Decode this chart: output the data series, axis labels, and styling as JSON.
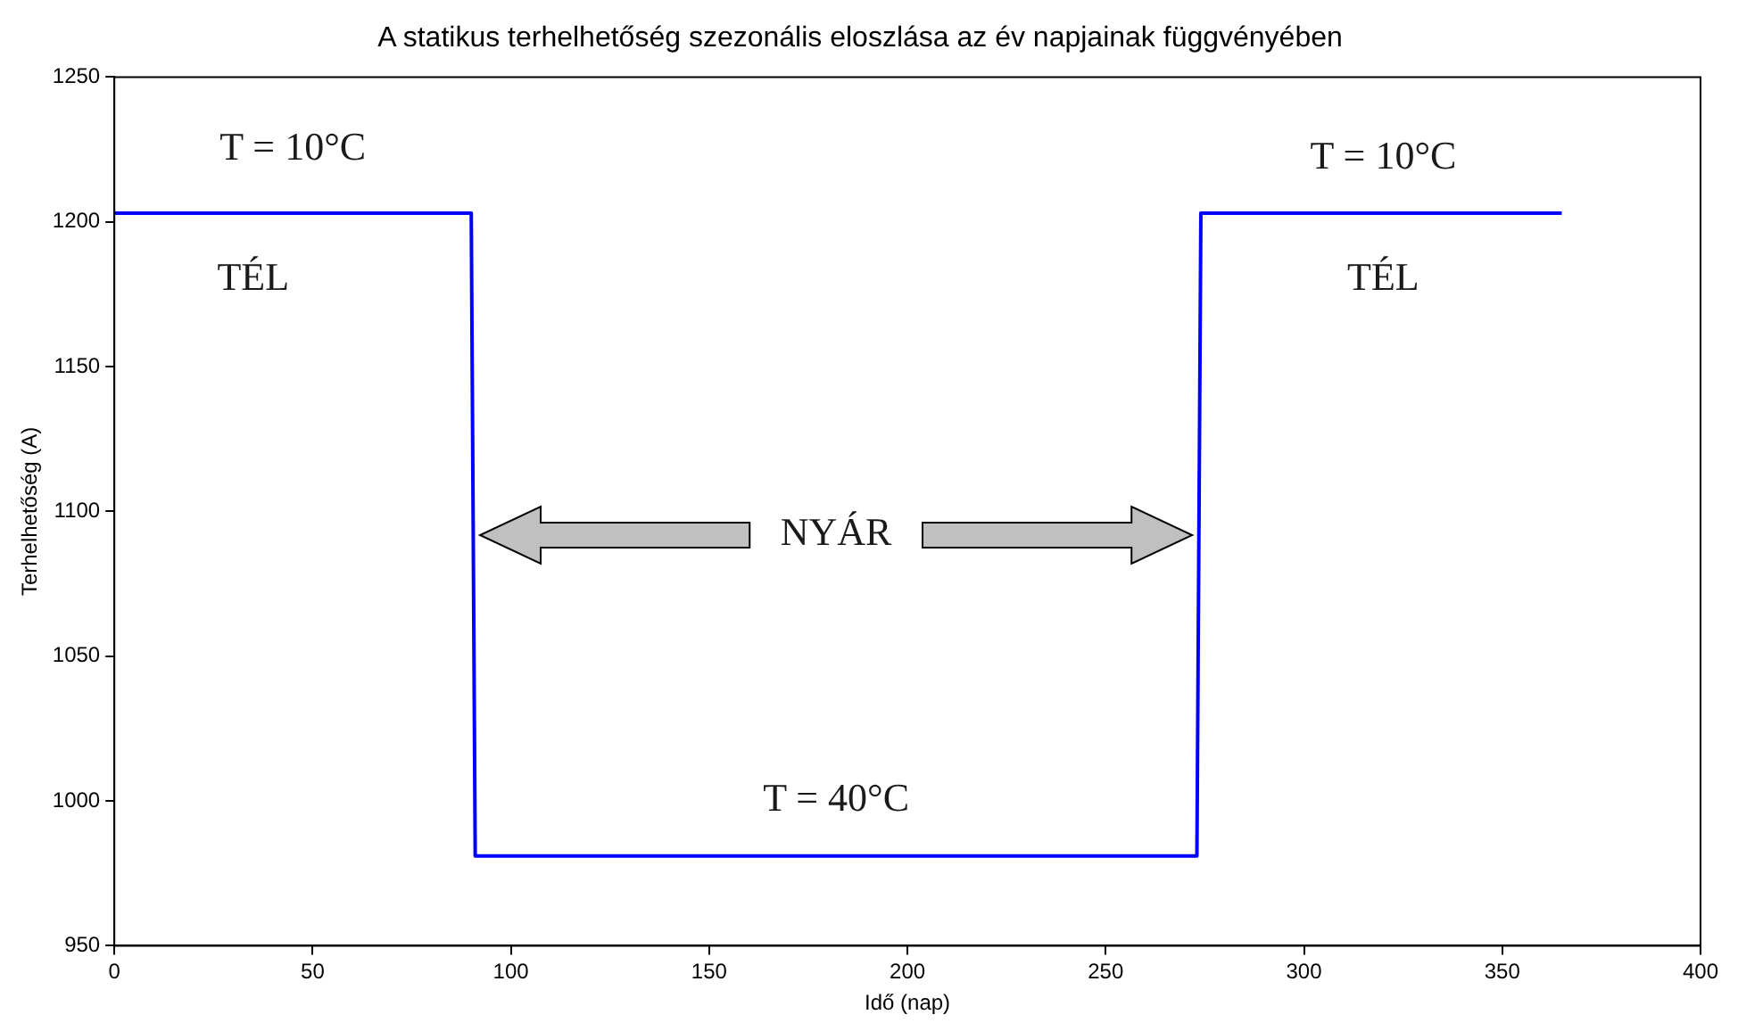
{
  "chart_data": {
    "type": "line",
    "title": "A statikus terhelhetőség szezonális eloszlása az év napjainak függvényében",
    "xlabel": "Idő (nap)",
    "ylabel": "Terhelhetőség (A)",
    "x": [
      0,
      90,
      91,
      273,
      274,
      365
    ],
    "series": [
      {
        "color": "#0000ff",
        "values": [
          1203,
          1203,
          981,
          981,
          1203,
          1203
        ]
      }
    ],
    "xlim": [
      0,
      400
    ],
    "xticks": [
      0,
      50,
      100,
      150,
      200,
      250,
      300,
      350,
      400
    ],
    "ylim": [
      950,
      1250
    ],
    "yticks": [
      950,
      1000,
      1050,
      1100,
      1150,
      1200,
      1250
    ],
    "grid": false,
    "legend": false,
    "marker": "none",
    "line_style": "solid",
    "annotations": [
      "T = 10°C",
      "TÉL",
      "T = 10°C",
      "TÉL",
      "NYÁR",
      "T = 40°C"
    ]
  }
}
